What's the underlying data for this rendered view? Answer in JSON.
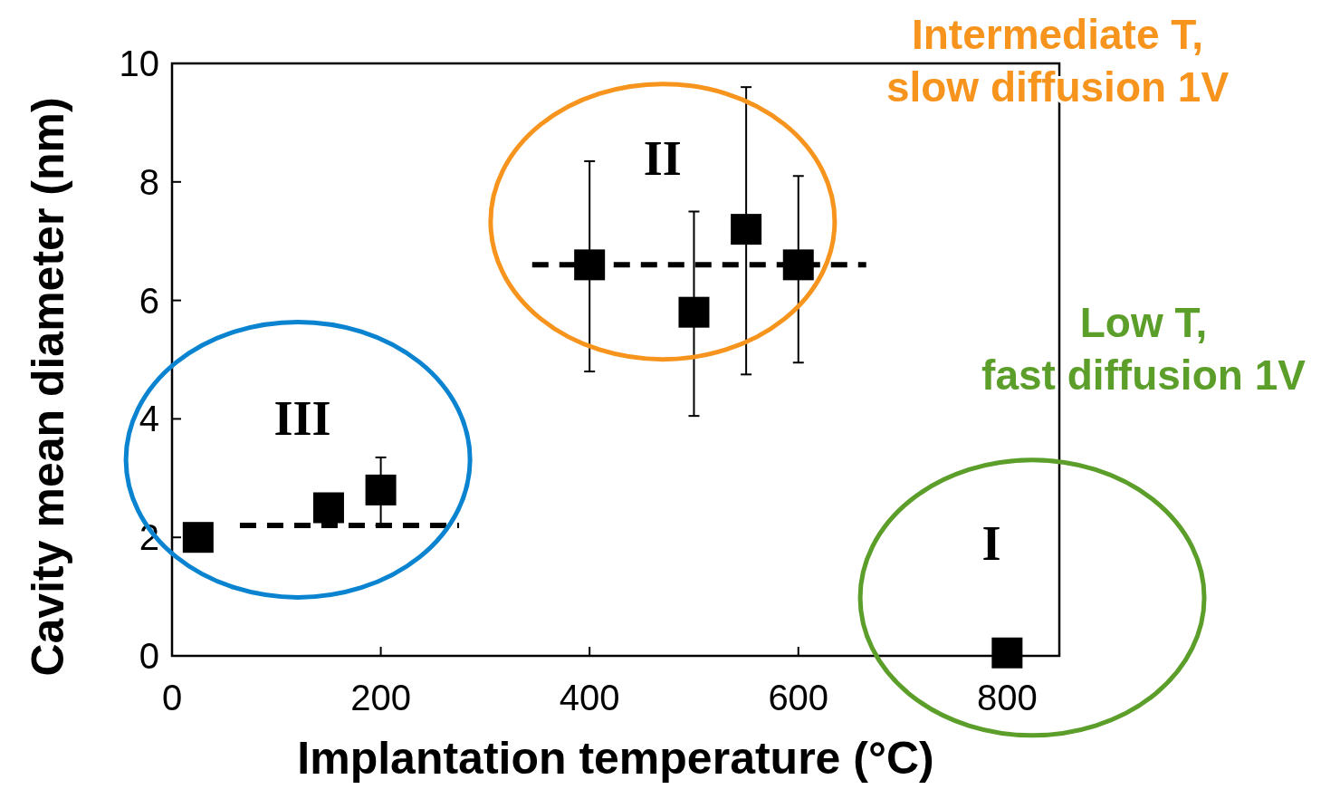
{
  "chart_data": {
    "type": "scatter",
    "xlabel": "Implantation temperature (°C)",
    "ylabel": "Cavity mean diameter (nm)",
    "xlim": [
      0,
      850
    ],
    "xticks": [
      0,
      200,
      400,
      600,
      800
    ],
    "ylim": [
      0,
      10
    ],
    "yticks": [
      0,
      2,
      4,
      6,
      8,
      10
    ],
    "grid": false,
    "marker": "square",
    "series": [
      {
        "color": "#000000",
        "x": [
          25,
          150,
          200,
          400,
          500,
          550,
          600,
          800
        ],
        "values": [
          2.0,
          2.5,
          2.8,
          6.6,
          5.8,
          7.2,
          6.6,
          0.05
        ],
        "errors": [
          null,
          null,
          [
            2.2,
            3.35
          ],
          [
            4.8,
            8.35
          ],
          [
            4.05,
            7.5
          ],
          [
            4.75,
            9.6
          ],
          [
            4.95,
            8.1
          ],
          null
        ]
      },
      {
        "type": "line",
        "color": "#000000",
        "line_style": "dashed",
        "marker": "none",
        "x": [
          65,
          275
        ],
        "values": [
          2.2,
          2.2
        ]
      },
      {
        "type": "line",
        "color": "#000000",
        "line_style": "dashed",
        "marker": "none",
        "x": [
          345,
          665
        ],
        "values": [
          6.6,
          6.6
        ]
      }
    ],
    "annotations": [
      "III",
      "II",
      "I",
      "Intermediate  T,\nslow diffusion 1V",
      "Low T,\nfast diffusion 1V"
    ]
  }
}
